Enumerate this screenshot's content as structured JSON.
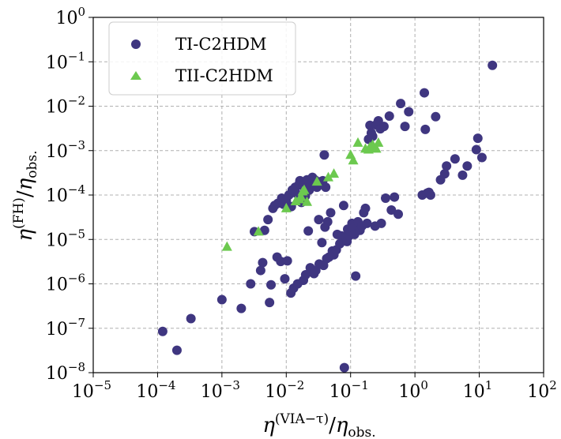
{
  "chart_data": {
    "type": "scatter",
    "xscale": "log",
    "yscale": "log",
    "xlim": [
      1e-05,
      100
    ],
    "ylim": [
      1e-08,
      1
    ],
    "grid": true,
    "legend_position": "top-left",
    "xlabel": {
      "base": "η",
      "sup": "(VIA−τ)",
      "slash": "/",
      "base2": "η",
      "sub": "obs."
    },
    "ylabel": {
      "base": "η",
      "sup": "(FH)",
      "slash": "/",
      "base2": "η",
      "sub": "obs."
    },
    "xticks": [
      {
        "value": 1e-05,
        "mantissa": "10",
        "exp": "−5"
      },
      {
        "value": 0.0001,
        "mantissa": "10",
        "exp": "−4"
      },
      {
        "value": 0.001,
        "mantissa": "10",
        "exp": "−3"
      },
      {
        "value": 0.01,
        "mantissa": "10",
        "exp": "−2"
      },
      {
        "value": 0.1,
        "mantissa": "10",
        "exp": "−1"
      },
      {
        "value": 1,
        "mantissa": "10",
        "exp": "0"
      },
      {
        "value": 10,
        "mantissa": "10",
        "exp": "1"
      },
      {
        "value": 100,
        "mantissa": "10",
        "exp": "2"
      }
    ],
    "yticks": [
      {
        "value": 1e-08,
        "mantissa": "10",
        "exp": "−8"
      },
      {
        "value": 1e-07,
        "mantissa": "10",
        "exp": "−7"
      },
      {
        "value": 1e-06,
        "mantissa": "10",
        "exp": "−6"
      },
      {
        "value": 1e-05,
        "mantissa": "10",
        "exp": "−5"
      },
      {
        "value": 0.0001,
        "mantissa": "10",
        "exp": "−4"
      },
      {
        "value": 0.001,
        "mantissa": "10",
        "exp": "−3"
      },
      {
        "value": 0.01,
        "mantissa": "10",
        "exp": "−2"
      },
      {
        "value": 0.1,
        "mantissa": "10",
        "exp": "−1"
      },
      {
        "value": 1,
        "mantissa": "10",
        "exp": "0"
      }
    ],
    "series": [
      {
        "name": "TI-C2HDM",
        "marker": "circle",
        "color": "#3f3680",
        "points": [
          [
            0.00012,
            8.5e-08
          ],
          [
            0.0002,
            3.2e-08
          ],
          [
            0.00033,
            1.65e-07
          ],
          [
            0.001,
            4.4e-07
          ],
          [
            0.002,
            2.8e-07
          ],
          [
            0.0028,
            1e-06
          ],
          [
            0.0032,
            1.5e-05
          ],
          [
            0.004,
            2e-06
          ],
          [
            0.0043,
            3e-06
          ],
          [
            0.0046,
            1.6e-05
          ],
          [
            0.0052,
            2.8e-05
          ],
          [
            0.0055,
            3.8e-07
          ],
          [
            0.0058,
            9.5e-07
          ],
          [
            0.0062,
            5e-05
          ],
          [
            0.0066,
            5.8e-05
          ],
          [
            0.0072,
            4e-06
          ],
          [
            0.0074,
            6.5e-05
          ],
          [
            0.0082,
            3.2e-06
          ],
          [
            0.0085,
            8.5e-05
          ],
          [
            0.009,
            6.2e-05
          ],
          [
            0.0095,
            1.3e-06
          ],
          [
            0.01,
            7.5e-05
          ],
          [
            0.0104,
            3.3e-06
          ],
          [
            0.011,
            0.0001
          ],
          [
            0.0118,
            6.2e-07
          ],
          [
            0.012,
            5.5e-05
          ],
          [
            0.0124,
            0.00013
          ],
          [
            0.013,
            8e-07
          ],
          [
            0.0138,
            0.00015
          ],
          [
            0.0142,
            0.00011
          ],
          [
            0.015,
            1e-06
          ],
          [
            0.016,
            0.00018
          ],
          [
            0.0163,
            0.00021
          ],
          [
            0.0172,
            6.8e-05
          ],
          [
            0.018,
            0.00016
          ],
          [
            0.0185,
            1.2e-06
          ],
          [
            0.019,
            0.0002
          ],
          [
            0.0198,
            9.5e-05
          ],
          [
            0.02,
            1.6e-06
          ],
          [
            0.021,
            0.00022
          ],
          [
            0.022,
            1.55e-05
          ],
          [
            0.0228,
            0.00013
          ],
          [
            0.0236,
            2.3e-06
          ],
          [
            0.024,
            0.00018
          ],
          [
            0.0255,
            0.00025
          ],
          [
            0.027,
            1.7e-06
          ],
          [
            0.0278,
            0.00022
          ],
          [
            0.0288,
            2e-06
          ],
          [
            0.03,
            0.00015
          ],
          [
            0.032,
            2.8e-05
          ],
          [
            0.0325,
            2.8e-06
          ],
          [
            0.034,
            0.0002
          ],
          [
            0.0358,
            8.5e-06
          ],
          [
            0.037,
            0.00021
          ],
          [
            0.038,
            2.6e-06
          ],
          [
            0.039,
            0.0008
          ],
          [
            0.04,
            1.9e-05
          ],
          [
            0.041,
            0.00015
          ],
          [
            0.0425,
            3.7e-06
          ],
          [
            0.044,
            2.5e-05
          ],
          [
            0.0462,
            4e-06
          ],
          [
            0.049,
            4e-05
          ],
          [
            0.052,
            5.5e-06
          ],
          [
            0.055,
            4.5e-06
          ],
          [
            0.06,
            5.8e-06
          ],
          [
            0.062,
            1.3e-05
          ],
          [
            0.068,
            8e-06
          ],
          [
            0.072,
            1.2e-05
          ],
          [
            0.075,
            1e-05
          ],
          [
            0.078,
            5.8e-05
          ],
          [
            0.08,
            1.3e-08
          ],
          [
            0.085,
            1.1e-05
          ],
          [
            0.088,
            9e-06
          ],
          [
            0.09,
            1.7e-05
          ],
          [
            0.095,
            1.2e-05
          ],
          [
            0.1,
            1.5e-05
          ],
          [
            0.105,
            2.3e-05
          ],
          [
            0.11,
            1.8e-05
          ],
          [
            0.115,
            1.3e-05
          ],
          [
            0.12,
            1.5e-06
          ],
          [
            0.13,
            2.5e-05
          ],
          [
            0.14,
            1.6e-05
          ],
          [
            0.15,
            2e-05
          ],
          [
            0.16,
            4e-05
          ],
          [
            0.17,
            5e-05
          ],
          [
            0.18,
            2.3e-05
          ],
          [
            0.19,
            0.0018
          ],
          [
            0.2,
            0.0037
          ],
          [
            0.21,
            0.0025
          ],
          [
            0.22,
            0.0021
          ],
          [
            0.24,
            2e-05
          ],
          [
            0.25,
            0.0038
          ],
          [
            0.27,
            0.0047
          ],
          [
            0.29,
            0.0031
          ],
          [
            0.3,
            2.3e-05
          ],
          [
            0.33,
            0.0035
          ],
          [
            0.35,
            8.5e-05
          ],
          [
            0.4,
            0.006
          ],
          [
            0.43,
            4.6e-05
          ],
          [
            0.48,
            9e-05
          ],
          [
            0.55,
            3.7e-05
          ],
          [
            0.6,
            0.0115
          ],
          [
            0.7,
            0.0035
          ],
          [
            0.8,
            0.0075
          ],
          [
            1.3,
            0.0001
          ],
          [
            1.4,
            0.02
          ],
          [
            1.45,
            0.003
          ],
          [
            1.55,
            0.00011
          ],
          [
            1.65,
            0.000115
          ],
          [
            1.75,
            0.0001
          ],
          [
            2.1,
            0.0058
          ],
          [
            2.5,
            0.00022
          ],
          [
            2.9,
            0.0003
          ],
          [
            3.1,
            0.00045
          ],
          [
            4.2,
            0.00065
          ],
          [
            5.5,
            0.00028
          ],
          [
            6.5,
            0.00045
          ],
          [
            9,
            0.00105
          ],
          [
            9.5,
            0.0019
          ],
          [
            11,
            0.0007
          ],
          [
            16,
            0.083
          ]
        ]
      },
      {
        "name": "TII-C2HDM",
        "marker": "triangle",
        "color": "#6cc94f",
        "points": [
          [
            0.0012,
            6.8e-06
          ],
          [
            0.0037,
            1.5e-05
          ],
          [
            0.01,
            5e-05
          ],
          [
            0.014,
            7.2e-05
          ],
          [
            0.016,
            8e-05
          ],
          [
            0.017,
            9e-05
          ],
          [
            0.018,
            0.00012
          ],
          [
            0.019,
            0.00013
          ],
          [
            0.021,
            7e-05
          ],
          [
            0.03,
            0.0002
          ],
          [
            0.045,
            0.00025
          ],
          [
            0.055,
            0.0003
          ],
          [
            0.1,
            0.0008
          ],
          [
            0.11,
            0.0006
          ],
          [
            0.13,
            0.0015
          ],
          [
            0.17,
            0.0011
          ],
          [
            0.19,
            0.00105
          ],
          [
            0.2,
            0.0012
          ],
          [
            0.22,
            0.00135
          ],
          [
            0.25,
            0.0011
          ],
          [
            0.27,
            0.0015
          ]
        ]
      }
    ]
  }
}
